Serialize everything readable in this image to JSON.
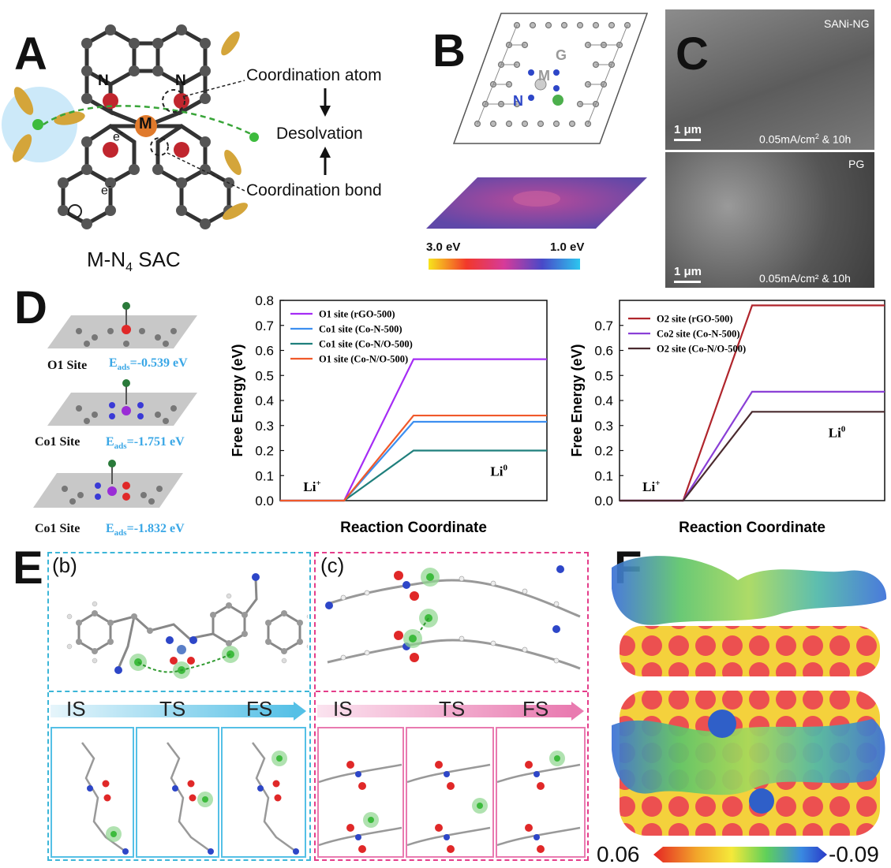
{
  "panels": {
    "a": {
      "label": "A",
      "atom_n1": "N",
      "atom_n2": "N",
      "atom_m": "M",
      "electron_1": "e",
      "electron_2": "e",
      "electron_sup": "-",
      "coordination_atom": "Coordination atom",
      "desolvation": "Desolvation",
      "coordination_bond": "Coordination bond",
      "caption_main": "M-N",
      "caption_sub": "4",
      "caption_tail": " SAC"
    },
    "b": {
      "label": "B",
      "atom_m": "M",
      "atom_n": "N",
      "atom_g": "G",
      "scale_left": "3.0 eV",
      "scale_right": "1.0 eV"
    },
    "c": {
      "label": "C",
      "top_sample": "SANi-NG",
      "top_scale": "1 μm",
      "top_cond_main": "0.05mA/cm",
      "top_cond_sup": "2",
      "top_cond_tail": " & 10h",
      "bottom_sample": "PG",
      "bottom_scale": "1 μm",
      "bottom_cond": "0.05mA/cm² & 10h"
    },
    "d": {
      "label": "D",
      "sites": [
        {
          "name": "O1 Site",
          "eads_main": "E",
          "eads_sub": "ads",
          "eads_value": "=-0.539 eV"
        },
        {
          "name": "Co1 Site",
          "eads_main": "E",
          "eads_sub": "ads",
          "eads_value": "=-1.751 eV"
        },
        {
          "name": "Co1 Site",
          "eads_main": "E",
          "eads_sub": "ads",
          "eads_value": "=-1.832 eV"
        }
      ]
    },
    "e": {
      "label": "E",
      "left_tag": "(b)",
      "right_tag": "(c)",
      "stages_left": [
        "IS",
        "TS",
        "FS"
      ],
      "stages_right": [
        "IS",
        "TS",
        "FS"
      ]
    },
    "f": {
      "label": "F",
      "scale_left": "0.06",
      "scale_right": "-0.09"
    }
  },
  "chart_data": [
    {
      "type": "line",
      "ylabel": "Free Energy (eV)",
      "xlabel": "Reaction Coordinate",
      "ylim": [
        0.0,
        0.8
      ],
      "yticks": [
        "0.0",
        "0.1",
        "0.2",
        "0.3",
        "0.4",
        "0.5",
        "0.6",
        "0.7",
        "0.8"
      ],
      "start_label": "Li",
      "start_sup": "+",
      "end_label": "Li",
      "end_sup": "0",
      "legend_position": "top-left",
      "series": [
        {
          "name": "O1 site (rGO-500)",
          "color": "#a52cf5",
          "start": 0.0,
          "end": 0.565
        },
        {
          "name": "Co1 site (Co-N-500)",
          "color": "#3d8ff0",
          "start": 0.0,
          "end": 0.315
        },
        {
          "name": "Co1 site (Co-N/O-500)",
          "color": "#1f7f7c",
          "start": 0.0,
          "end": 0.2
        },
        {
          "name": "O1 site (Co-N/O-500)",
          "color": "#f0592a",
          "start": 0.0,
          "end": 0.34
        }
      ]
    },
    {
      "type": "line",
      "ylabel": "Free Energy (eV)",
      "xlabel": "Reaction Coordinate",
      "ylim": [
        0.0,
        0.8
      ],
      "yticks": [
        "0.0",
        "0.1",
        "0.2",
        "0.3",
        "0.4",
        "0.5",
        "0.6",
        "0.7"
      ],
      "start_label": "Li",
      "start_sup": "+",
      "end_label": "Li",
      "end_sup": "0",
      "legend_position": "top-left",
      "series": [
        {
          "name": "O2 site (rGO-500)",
          "color": "#b0252c",
          "start": 0.0,
          "end": 0.78
        },
        {
          "name": "Co2 site (Co-N-500)",
          "color": "#8a3fd6",
          "start": 0.0,
          "end": 0.435
        },
        {
          "name": "O2 site (Co-N/O-500)",
          "color": "#4a2a2e",
          "start": 0.0,
          "end": 0.355
        }
      ]
    }
  ]
}
